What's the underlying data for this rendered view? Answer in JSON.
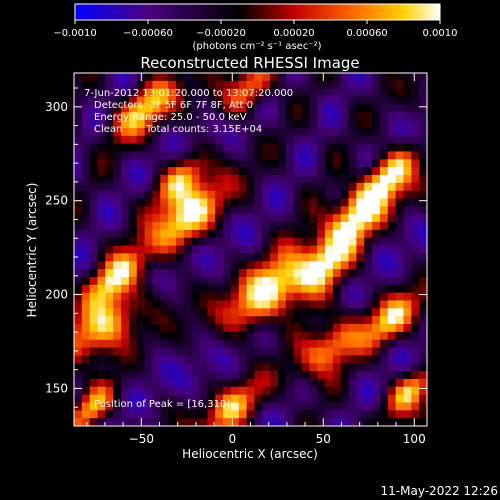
{
  "chart_data": {
    "type": "heatmap",
    "title": "Reconstructed RHESSI Image",
    "xlabel": "Heliocentric X (arcsec)",
    "ylabel": "Heliocentric Y (arcsec)",
    "xlim": [
      -87,
      107
    ],
    "ylim": [
      130,
      318
    ],
    "xticks": [
      -50,
      0,
      50,
      100
    ],
    "xtick_labels": [
      "−50",
      "0",
      "50",
      "100"
    ],
    "yticks": [
      150,
      200,
      250,
      300
    ],
    "ytick_labels": [
      "150",
      "200",
      "250",
      "300"
    ],
    "colorbar": {
      "range": [
        -0.001,
        0.001
      ],
      "ticks": [
        -0.001,
        -0.0006,
        -0.0002,
        0.0002,
        0.0006,
        0.001
      ],
      "tick_labels": [
        "−0.0010",
        "−0.00060",
        "−0.00020",
        "0.00020",
        "0.00060",
        "0.0010"
      ],
      "unit_label": "(photons cm⁻² s⁻¹ asec⁻²)",
      "colors": [
        "#0000ff",
        "#4a0080",
        "#000000",
        "#c00000",
        "#ff6000",
        "#ffd000",
        "#ffffff"
      ]
    },
    "annotations": {
      "time_range": "7-Jun-2012 13:01:20.000 to 13:07:20.000",
      "detectors": "Detectors: 3F 5F 6F 7F 8F, Att 0",
      "energy_range": "Energy Range: 25.0 - 50.0 keV",
      "method": "Clean",
      "total_counts": "Total counts: 3.15E+04",
      "peak": "Position of Peak = [16,310]"
    },
    "grid": false
  },
  "footer": {
    "date": "11-May-2022 12:26"
  }
}
